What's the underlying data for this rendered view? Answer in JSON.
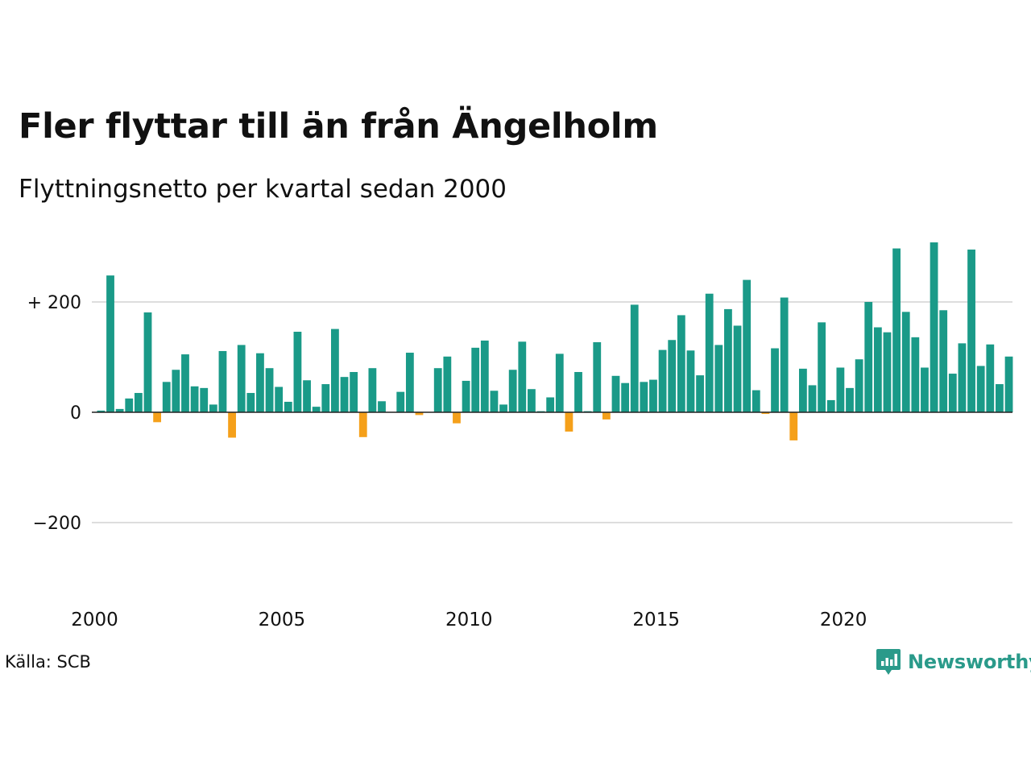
{
  "title": "Fler flyttar till än från Ängelholm",
  "subtitle": "Flyttningsnetto per kvartal sedan 2000",
  "source": "Källa: SCB",
  "brand": {
    "name": "Newsworthy",
    "icon": "newsworthy-logo-icon",
    "color": "#2a9a8a"
  },
  "colors": {
    "positive": "#1a9a88",
    "negative": "#f5a01a",
    "grid": "#dddddd",
    "axis": "#222222"
  },
  "chart_data": {
    "type": "bar",
    "title": "Fler flyttar till än från Ängelholm",
    "subtitle": "Flyttningsnetto per kvartal sedan 2000",
    "xlabel": "",
    "ylabel": "",
    "grid": true,
    "start": "2000 Q1",
    "ylim": [
      -300,
      310
    ],
    "yticks": [
      {
        "value": 200,
        "label": "+ 200"
      },
      {
        "value": 0,
        "label": "0"
      },
      {
        "value": -200,
        "label": "−200"
      }
    ],
    "xticks": [
      {
        "value": 2000,
        "label": "2000"
      },
      {
        "value": 2005,
        "label": "2005"
      },
      {
        "value": 2010,
        "label": "2010"
      },
      {
        "value": 2015,
        "label": "2015"
      },
      {
        "value": 2020,
        "label": "2020"
      }
    ],
    "values": [
      3,
      248,
      6,
      25,
      35,
      181,
      -18,
      55,
      77,
      105,
      47,
      44,
      14,
      111,
      -46,
      122,
      35,
      107,
      80,
      46,
      19,
      146,
      58,
      10,
      51,
      151,
      64,
      73,
      -45,
      80,
      20,
      0,
      37,
      108,
      -5,
      0,
      80,
      101,
      -20,
      57,
      117,
      130,
      39,
      14,
      77,
      128,
      42,
      2,
      27,
      106,
      -35,
      73,
      2,
      127,
      -13,
      66,
      53,
      195,
      55,
      59,
      113,
      131,
      176,
      112,
      67,
      215,
      122,
      187,
      157,
      240,
      40,
      -3,
      116,
      208,
      -51,
      79,
      49,
      163,
      22,
      81,
      44,
      96,
      200,
      154,
      145,
      297,
      182,
      136,
      81,
      308,
      185,
      70,
      125,
      295,
      84,
      123,
      51,
      101
    ]
  }
}
